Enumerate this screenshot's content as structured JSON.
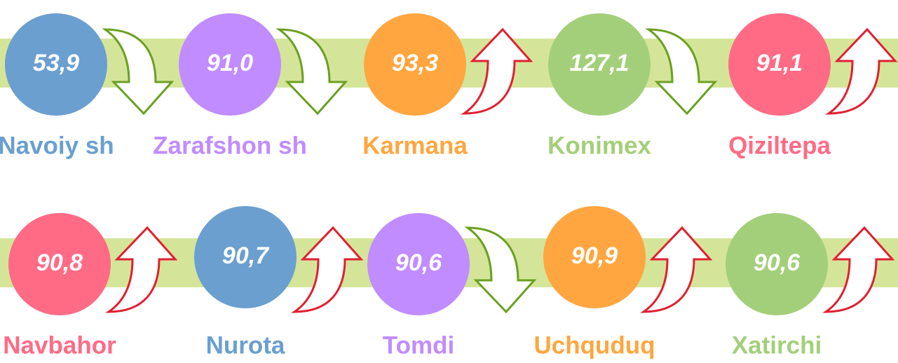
{
  "rows": [
    [
      {
        "label": "Navoiy sh",
        "value": "53,9",
        "color": "#6a9fd0",
        "trend": "down"
      },
      {
        "label": "Zarafshon sh",
        "value": "91,0",
        "color": "#c08cff",
        "trend": "down"
      },
      {
        "label": "Karmana",
        "value": "93,3",
        "color": "#ffa640",
        "trend": "up"
      },
      {
        "label": "Konimex",
        "value": "127,1",
        "color": "#a3cf7a",
        "trend": "down"
      },
      {
        "label": "Qiziltepa",
        "value": "91,1",
        "color": "#ff6b85",
        "trend": "up"
      }
    ],
    [
      {
        "label": "Navbahor",
        "value": "90,8",
        "color": "#ff6b85",
        "trend": "up"
      },
      {
        "label": "Nurota",
        "value": "90,7",
        "color": "#6a9fd0",
        "trend": "up"
      },
      {
        "label": "Tomdi",
        "value": "90,6",
        "color": "#c08cff",
        "trend": "down"
      },
      {
        "label": "Uchquduq",
        "value": "90,9",
        "color": "#ffa640",
        "trend": "up"
      },
      {
        "label": "Xatirchi",
        "value": "90,6",
        "color": "#a3cf7a",
        "trend": "up"
      }
    ]
  ]
}
